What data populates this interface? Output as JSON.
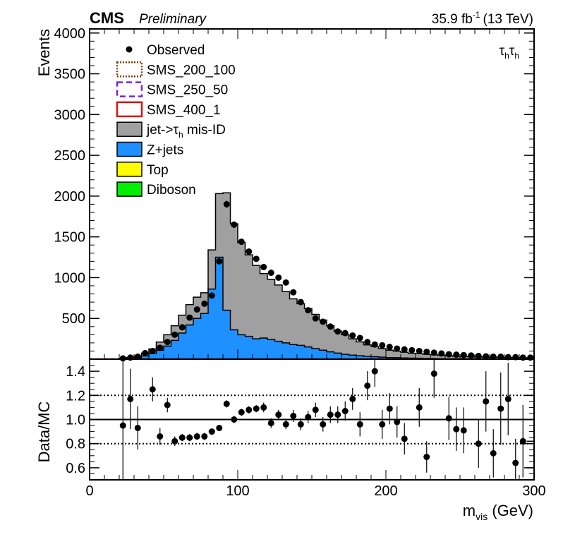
{
  "header": {
    "experiment": "CMS",
    "status": "Preliminary",
    "lumi_value": "35.9 fb",
    "lumi_exp": "-1",
    "energy": "(13 TeV)"
  },
  "channel": {
    "tau1": "τ",
    "sub1": "h",
    "tau2": "τ",
    "sub2": "h"
  },
  "legend": {
    "placement": "top-left",
    "entries": [
      {
        "label": "Observed",
        "style": "marker",
        "color": "#000000"
      },
      {
        "label": "SMS_200_100",
        "style": "dotted-box",
        "color": "#7a3a00"
      },
      {
        "label": "SMS_250_50",
        "style": "dashed-box",
        "color": "#7722dd"
      },
      {
        "label": "SMS_400_1",
        "style": "outline-box",
        "color": "#dd1111"
      },
      {
        "label": "jet->τ",
        "sub": "h",
        "label_tail": " mis-ID",
        "style": "fill",
        "color": "#a0a0a0"
      },
      {
        "label": "Z+jets",
        "style": "fill",
        "color": "#1e90ff"
      },
      {
        "label": "Top",
        "style": "fill",
        "color": "#ffff00"
      },
      {
        "label": "Diboson",
        "style": "fill",
        "color": "#00ee00"
      }
    ]
  },
  "chart_data": {
    "type": "bar",
    "x_edges_start": 0,
    "bin_width": 5,
    "xlim": [
      0,
      300
    ],
    "xlabel_main": "m",
    "xlabel_sub": "vis",
    "xlabel_unit": " (GeV)",
    "xticks": [
      "0",
      "100",
      "200",
      "300"
    ],
    "top": {
      "ylabel": "Events",
      "ylim": [
        0,
        4050
      ],
      "yticks": [
        "500",
        "1000",
        "1500",
        "2000",
        "2500",
        "3000",
        "3500",
        "4000"
      ],
      "zjets": [
        0,
        0,
        0,
        0,
        5,
        10,
        20,
        40,
        70,
        110,
        160,
        230,
        320,
        420,
        500,
        560,
        860,
        1250,
        600,
        360,
        300,
        280,
        250,
        260,
        240,
        220,
        200,
        180,
        170,
        150,
        130,
        110,
        90,
        75,
        60,
        50,
        42,
        35,
        30,
        25,
        20,
        18,
        15,
        13,
        12,
        10,
        9,
        8,
        7,
        6,
        6,
        5,
        5,
        4,
        4,
        3,
        3,
        3,
        2,
        2
      ],
      "misid": [
        0,
        0,
        0,
        0,
        5,
        10,
        18,
        35,
        55,
        100,
        140,
        180,
        220,
        250,
        260,
        255,
        480,
        780,
        1440,
        1300,
        1130,
        1000,
        900,
        790,
        740,
        690,
        630,
        560,
        510,
        470,
        420,
        370,
        320,
        270,
        240,
        200,
        170,
        140,
        125,
        105,
        90,
        80,
        70,
        60,
        55,
        50,
        45,
        40,
        35,
        30,
        30,
        25,
        25,
        20,
        20,
        20,
        15,
        15,
        15,
        15
      ],
      "observed": [
        null,
        null,
        null,
        null,
        10,
        20,
        30,
        75,
        100,
        140,
        210,
        300,
        390,
        510,
        610,
        680,
        780,
        1200,
        1900,
        1650,
        1440,
        1320,
        1230,
        1130,
        1060,
        1000,
        940,
        820,
        700,
        600,
        500,
        460,
        400,
        340,
        320,
        290,
        260,
        210,
        180,
        170,
        150,
        130,
        120,
        110,
        100,
        90,
        80,
        70,
        60,
        55,
        50,
        45,
        40,
        35,
        30,
        30,
        25,
        25,
        20,
        20
      ],
      "signals": [
        {
          "name": "SMS_200_100",
          "value": 5
        },
        {
          "name": "SMS_250_50",
          "value": 4
        },
        {
          "name": "SMS_400_1",
          "value": 3
        }
      ]
    },
    "ratio": {
      "ylabel": "Data/MC",
      "ylim": [
        0.5,
        1.5
      ],
      "yticks": [
        "0.6",
        "0.8",
        "1.0",
        "1.2",
        "1.4"
      ],
      "ref_lines": [
        0.8,
        1.0,
        1.2
      ],
      "points": [
        {
          "x": 22.5,
          "y": 0.95,
          "err": 0.55
        },
        {
          "x": 27.5,
          "y": 1.17,
          "err": 0.25
        },
        {
          "x": 32.5,
          "y": 0.93,
          "err": 0.18
        },
        {
          "x": 42.5,
          "y": 1.25,
          "err": 0.1
        },
        {
          "x": 47.5,
          "y": 0.86,
          "err": 0.07
        },
        {
          "x": 52.5,
          "y": 1.12,
          "err": 0.06
        },
        {
          "x": 57.5,
          "y": 0.82,
          "err": 0.04
        },
        {
          "x": 62.5,
          "y": 0.85,
          "err": 0.03
        },
        {
          "x": 67.5,
          "y": 0.85,
          "err": 0.03
        },
        {
          "x": 72.5,
          "y": 0.86,
          "err": 0.03
        },
        {
          "x": 77.5,
          "y": 0.86,
          "err": 0.03
        },
        {
          "x": 82.5,
          "y": 0.9,
          "err": 0.02
        },
        {
          "x": 87.5,
          "y": 0.93,
          "err": 0.02
        },
        {
          "x": 92.5,
          "y": 1.13,
          "err": 0.03
        },
        {
          "x": 97.5,
          "y": 1.0,
          "err": 0.03
        },
        {
          "x": 102.5,
          "y": 1.06,
          "err": 0.03
        },
        {
          "x": 107.5,
          "y": 1.08,
          "err": 0.03
        },
        {
          "x": 112.5,
          "y": 1.09,
          "err": 0.03
        },
        {
          "x": 117.5,
          "y": 1.1,
          "err": 0.04
        },
        {
          "x": 122.5,
          "y": 0.97,
          "err": 0.04
        },
        {
          "x": 127.5,
          "y": 1.04,
          "err": 0.04
        },
        {
          "x": 132.5,
          "y": 0.96,
          "err": 0.04
        },
        {
          "x": 137.5,
          "y": 1.03,
          "err": 0.05
        },
        {
          "x": 142.5,
          "y": 0.96,
          "err": 0.05
        },
        {
          "x": 147.5,
          "y": 1.02,
          "err": 0.05
        },
        {
          "x": 152.5,
          "y": 1.08,
          "err": 0.06
        },
        {
          "x": 157.5,
          "y": 0.96,
          "err": 0.06
        },
        {
          "x": 162.5,
          "y": 1.04,
          "err": 0.07
        },
        {
          "x": 167.5,
          "y": 1.04,
          "err": 0.07
        },
        {
          "x": 172.5,
          "y": 1.07,
          "err": 0.08
        },
        {
          "x": 177.5,
          "y": 1.17,
          "err": 0.09
        },
        {
          "x": 182.5,
          "y": 0.96,
          "err": 0.1
        },
        {
          "x": 187.5,
          "y": 1.28,
          "err": 0.12
        },
        {
          "x": 192.5,
          "y": 1.4,
          "err": 0.13
        },
        {
          "x": 197.5,
          "y": 0.96,
          "err": 0.12
        },
        {
          "x": 202.5,
          "y": 1.09,
          "err": 0.13
        },
        {
          "x": 207.5,
          "y": 0.98,
          "err": 0.13
        },
        {
          "x": 212.5,
          "y": 0.84,
          "err": 0.13
        },
        {
          "x": 222.5,
          "y": 1.1,
          "err": 0.16
        },
        {
          "x": 227.5,
          "y": 0.69,
          "err": 0.13
        },
        {
          "x": 232.5,
          "y": 1.38,
          "err": 0.2
        },
        {
          "x": 242.5,
          "y": 1.01,
          "err": 0.18
        },
        {
          "x": 247.5,
          "y": 0.92,
          "err": 0.18
        },
        {
          "x": 252.5,
          "y": 0.91,
          "err": 0.19
        },
        {
          "x": 262.5,
          "y": 0.8,
          "err": 0.2
        },
        {
          "x": 267.5,
          "y": 1.15,
          "err": 0.25
        },
        {
          "x": 272.5,
          "y": 0.72,
          "err": 0.2
        },
        {
          "x": 277.5,
          "y": 1.09,
          "err": 0.3
        },
        {
          "x": 282.5,
          "y": 1.17,
          "err": 0.3
        },
        {
          "x": 287.5,
          "y": 0.64,
          "err": 0.2
        },
        {
          "x": 292.5,
          "y": 0.82,
          "err": 0.3
        }
      ]
    }
  }
}
